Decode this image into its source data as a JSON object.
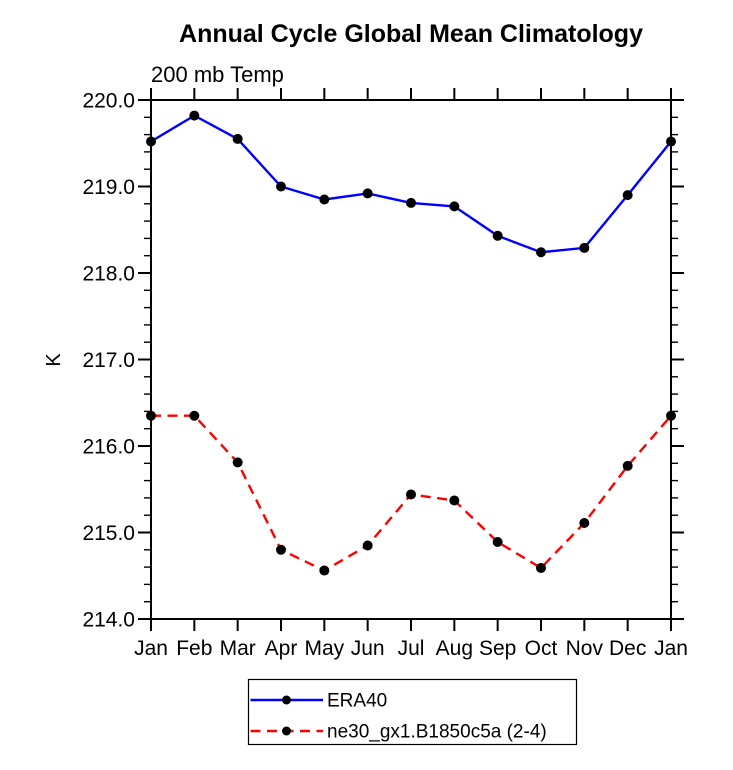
{
  "chart_data": {
    "type": "line",
    "title": "Annual Cycle Global Mean Climatology",
    "subtitle": "200 mb Temp",
    "ylabel": "K",
    "categories": [
      "Jan",
      "Feb",
      "Mar",
      "Apr",
      "May",
      "Jun",
      "Jul",
      "Aug",
      "Sep",
      "Oct",
      "Nov",
      "Dec",
      "Jan"
    ],
    "ylim": [
      214.0,
      220.0
    ],
    "ytick_interval": 1.0,
    "ytick_minor_interval": 0.2,
    "ytick_labels": [
      "214.0",
      "215.0",
      "216.0",
      "217.0",
      "218.0",
      "219.0",
      "220.0"
    ],
    "grid": false,
    "legend_position": "bottom-center",
    "series": [
      {
        "name": "ERA40",
        "color": "#0000ff",
        "line_style": "solid",
        "marker": "circle",
        "marker_color": "#000000",
        "values": [
          219.52,
          219.82,
          219.55,
          219.0,
          218.85,
          218.92,
          218.81,
          218.77,
          218.43,
          218.24,
          218.29,
          218.9,
          219.52
        ]
      },
      {
        "name": "ne30_gx1.B1850c5a (2-4)",
        "color": "#ff0000",
        "line_style": "dashed",
        "marker": "circle",
        "marker_color": "#000000",
        "values": [
          216.35,
          216.35,
          215.81,
          214.8,
          214.56,
          214.85,
          215.44,
          215.37,
          214.89,
          214.59,
          215.11,
          215.77,
          216.35
        ]
      }
    ]
  },
  "colors": {
    "axis": "#000000",
    "background": "#ffffff",
    "marker": "#000000",
    "era40_line": "#0000ff",
    "model_line": "#ff0000"
  }
}
